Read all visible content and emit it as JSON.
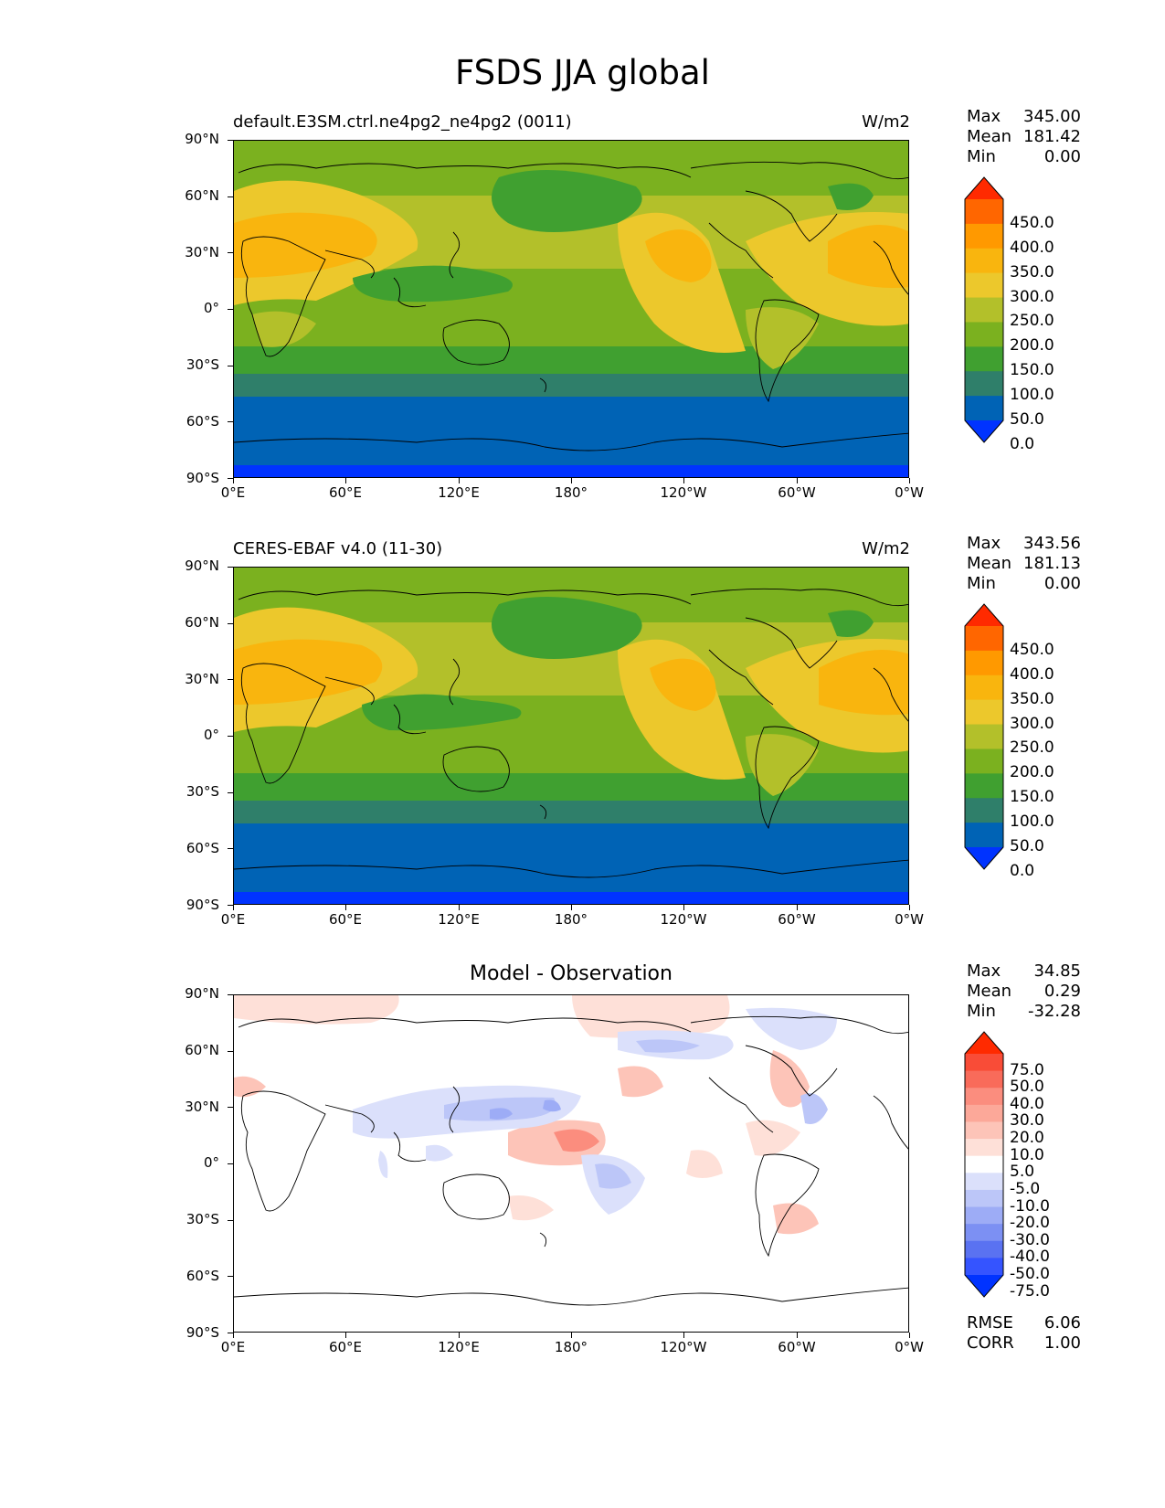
{
  "figure": {
    "title": "FSDS JJA global"
  },
  "axes": {
    "lat_ticks": [
      "90°N",
      "60°N",
      "30°N",
      "0°",
      "30°S",
      "60°S",
      "90°S"
    ],
    "lon_ticks": [
      "0°E",
      "60°E",
      "120°E",
      "180°",
      "120°W",
      "60°W",
      "0°W"
    ]
  },
  "panels": [
    {
      "id": "test",
      "label": "default.E3SM.ctrl.ne4pg2_ne4pg2 (0011)",
      "units": "W/m2",
      "stats": {
        "max_label": "Max",
        "max": "345.00",
        "mean_label": "Mean",
        "mean": "181.42",
        "min_label": "Min",
        "min": "0.00"
      },
      "colorbar": {
        "labels": [
          "450.0",
          "400.0",
          "350.0",
          "300.0",
          "250.0",
          "200.0",
          "150.0",
          "100.0",
          "50.0",
          "0.0"
        ],
        "colors": [
          "#ff2a00",
          "#ff6600",
          "#ff9900",
          "#f9b50e",
          "#ecc82c",
          "#b3c02a",
          "#7bb11f",
          "#40a030",
          "#2f7f6a",
          "#0063b5",
          "#0033ff"
        ]
      }
    },
    {
      "id": "ref",
      "label": "CERES-EBAF v4.0 (11-30)",
      "units": "W/m2",
      "stats": {
        "max_label": "Max",
        "max": "343.56",
        "mean_label": "Mean",
        "mean": "181.13",
        "min_label": "Min",
        "min": "0.00"
      },
      "colorbar": {
        "labels": [
          "450.0",
          "400.0",
          "350.0",
          "300.0",
          "250.0",
          "200.0",
          "150.0",
          "100.0",
          "50.0",
          "0.0"
        ],
        "colors": [
          "#ff2a00",
          "#ff6600",
          "#ff9900",
          "#f9b50e",
          "#ecc82c",
          "#b3c02a",
          "#7bb11f",
          "#40a030",
          "#2f7f6a",
          "#0063b5",
          "#0033ff"
        ]
      }
    },
    {
      "id": "diff",
      "title": "Model - Observation",
      "stats": {
        "max_label": "Max",
        "max": "34.85",
        "mean_label": "Mean",
        "mean": "0.29",
        "min_label": "Min",
        "min": "-32.28"
      },
      "colorbar": {
        "labels": [
          "75.0",
          "50.0",
          "40.0",
          "30.0",
          "20.0",
          "10.0",
          "5.0",
          "-5.0",
          "-10.0",
          "-20.0",
          "-30.0",
          "-40.0",
          "-50.0",
          "-75.0"
        ],
        "colors": [
          "#ff2a00",
          "#f94c37",
          "#f96b5a",
          "#fb8d7e",
          "#fca899",
          "#fdc4b8",
          "#fee0d8",
          "#ffffff",
          "#dbe0fb",
          "#bcc6f8",
          "#9dacf6",
          "#7c90f3",
          "#5a72f1",
          "#3554ff",
          "#0033ff"
        ]
      },
      "metrics": {
        "rmse_label": "RMSE",
        "rmse": "6.06",
        "corr_label": "CORR",
        "corr": "1.00"
      }
    }
  ]
}
